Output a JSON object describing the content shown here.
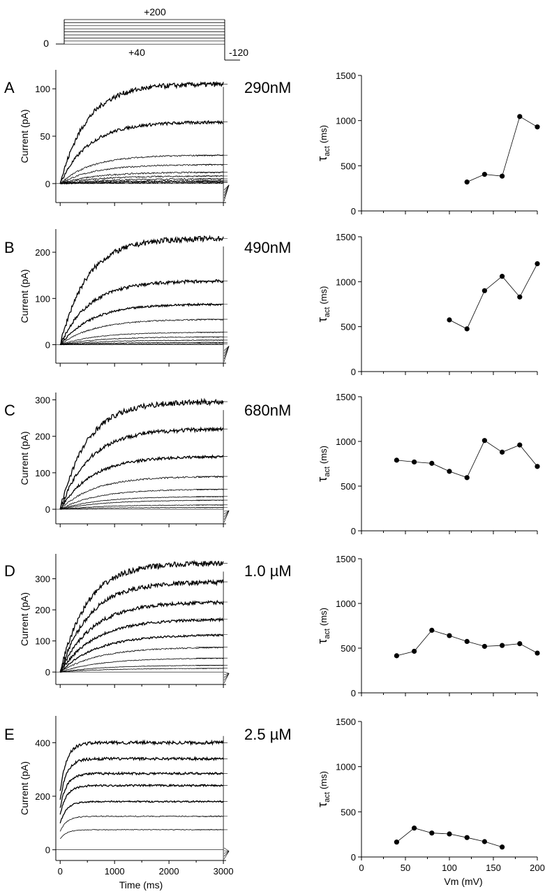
{
  "protocol": {
    "top_label": "+200",
    "bottom_label": "+40",
    "hold_label": "0",
    "tail_label": "-120"
  },
  "chart_data": [
    {
      "panel": "A",
      "concentration": "290nM",
      "current_traces": {
        "type": "line",
        "ylabel": "Current (pA)",
        "xlabel": "",
        "xlim": [
          -80,
          3050
        ],
        "ylim": [
          -20,
          120
        ],
        "yticks": [
          "0",
          "50",
          "100"
        ],
        "xticks": [
          0,
          1000,
          2000,
          3000
        ],
        "x_ticklabels_shown": false,
        "steady_state": [
          1,
          2,
          3,
          5,
          8,
          12,
          20,
          30,
          65,
          105
        ]
      },
      "tau_act": {
        "type": "scatter",
        "ylabel": "τ",
        "ylabel_sub": "act",
        "ylabel_unit": "(ms)",
        "ylim": [
          0,
          1500
        ],
        "yticks": [
          "0",
          "500",
          "1000",
          "1500"
        ],
        "xlim": [
          0,
          200
        ],
        "x": [
          120,
          140,
          160,
          180,
          200
        ],
        "y": [
          320,
          405,
          385,
          1045,
          930
        ]
      }
    },
    {
      "panel": "B",
      "concentration": "490nM",
      "current_traces": {
        "type": "line",
        "ylabel": "Current (pA)",
        "xlabel": "",
        "xlim": [
          -80,
          3050
        ],
        "ylim": [
          -40,
          250
        ],
        "yticks": [
          "0",
          "100",
          "200"
        ],
        "xticks": [
          0,
          1000,
          2000,
          3000
        ],
        "x_ticklabels_shown": false,
        "steady_state": [
          2,
          5,
          10,
          17,
          27,
          55,
          88,
          138,
          230
        ]
      },
      "tau_act": {
        "type": "scatter",
        "ylabel": "τ",
        "ylabel_sub": "act",
        "ylabel_unit": "(ms)",
        "ylim": [
          0,
          1500
        ],
        "yticks": [
          "0",
          "500",
          "1000",
          "1500"
        ],
        "xlim": [
          0,
          200
        ],
        "x": [
          100,
          120,
          140,
          160,
          180,
          200
        ],
        "y": [
          575,
          475,
          900,
          1060,
          830,
          1200
        ]
      }
    },
    {
      "panel": "C",
      "concentration": "680nM",
      "current_traces": {
        "type": "line",
        "ylabel": "Current (pA)",
        "xlabel": "",
        "xlim": [
          -80,
          3050
        ],
        "ylim": [
          -40,
          320
        ],
        "yticks": [
          "0",
          "100",
          "200",
          "300"
        ],
        "xticks": [
          0,
          1000,
          2000,
          3000
        ],
        "x_ticklabels_shown": false,
        "steady_state": [
          5,
          12,
          25,
          35,
          55,
          90,
          145,
          220,
          295
        ]
      },
      "tau_act": {
        "type": "scatter",
        "ylabel": "τ",
        "ylabel_sub": "act",
        "ylabel_unit": "(ms)",
        "ylim": [
          0,
          1500
        ],
        "yticks": [
          "0",
          "500",
          "1000",
          "1500"
        ],
        "xlim": [
          0,
          200
        ],
        "x": [
          40,
          60,
          80,
          100,
          120,
          140,
          160,
          180,
          200
        ],
        "y": [
          790,
          770,
          755,
          665,
          595,
          1010,
          880,
          960,
          720
        ]
      }
    },
    {
      "panel": "D",
      "concentration": "1.0 µM",
      "current_traces": {
        "type": "line",
        "ylabel": "Current (pA)",
        "xlabel": "",
        "xlim": [
          -80,
          3050
        ],
        "ylim": [
          -40,
          380
        ],
        "yticks": [
          "0",
          "100",
          "200",
          "300"
        ],
        "xticks": [
          0,
          1000,
          2000,
          3000
        ],
        "x_ticklabels_shown": false,
        "steady_state": [
          12,
          22,
          45,
          80,
          120,
          170,
          225,
          290,
          350
        ]
      },
      "tau_act": {
        "type": "scatter",
        "ylabel": "τ",
        "ylabel_sub": "act",
        "ylabel_unit": "(ms)",
        "ylim": [
          0,
          1500
        ],
        "yticks": [
          "0",
          "500",
          "1000",
          "1500"
        ],
        "xlim": [
          0,
          200
        ],
        "x": [
          40,
          60,
          80,
          100,
          120,
          140,
          160,
          180,
          200
        ],
        "y": [
          415,
          465,
          700,
          640,
          575,
          520,
          530,
          550,
          445
        ]
      }
    },
    {
      "panel": "E",
      "concentration": "2.5 µM",
      "current_traces": {
        "type": "line",
        "ylabel": "Current (pA)",
        "xlabel": "Time (ms)",
        "xlim": [
          -80,
          3050
        ],
        "ylim": [
          -40,
          500
        ],
        "yticks": [
          "0",
          "200",
          "400"
        ],
        "xticks": [
          0,
          1000,
          2000,
          3000
        ],
        "xticklabels": [
          "0",
          "1000",
          "2000",
          "3000"
        ],
        "x_ticklabels_shown": true,
        "steady_state": [
          75,
          125,
          180,
          240,
          285,
          340,
          400
        ]
      },
      "tau_act": {
        "type": "scatter",
        "ylabel": "τ",
        "ylabel_sub": "act",
        "ylabel_unit": "(ms)",
        "xlabel": "Vm (mV)",
        "ylim": [
          0,
          1500
        ],
        "yticks": [
          "0",
          "500",
          "1000",
          "1500"
        ],
        "xlim": [
          0,
          200
        ],
        "xticklabels": [
          "0",
          "50",
          "100",
          "150",
          "200"
        ],
        "x_ticklabels_shown": true,
        "x": [
          40,
          60,
          80,
          100,
          120,
          140,
          160
        ],
        "y": [
          165,
          320,
          265,
          255,
          215,
          170,
          110
        ]
      }
    }
  ]
}
